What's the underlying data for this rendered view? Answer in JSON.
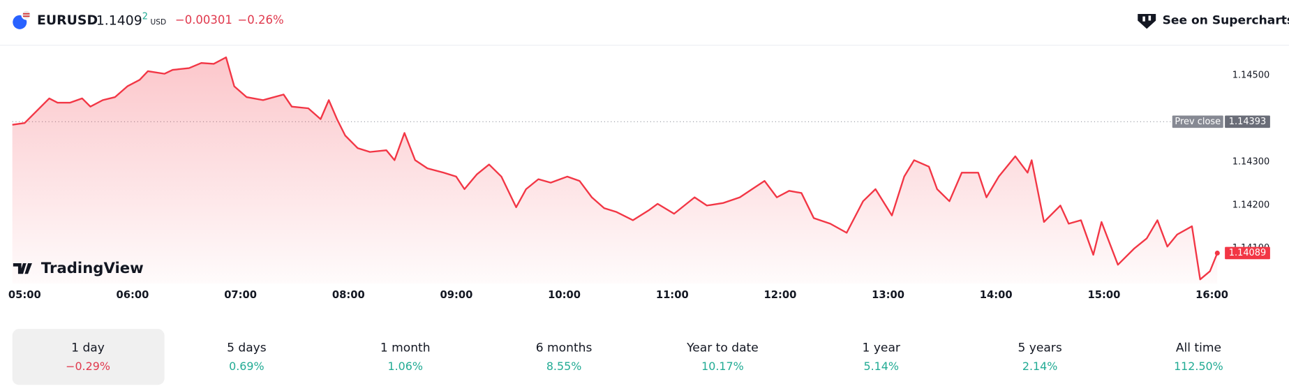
{
  "header": {
    "symbol": "EURUSD",
    "price": "1.1409",
    "price_pipette": "2",
    "currency": "USD",
    "change": "−0.00301",
    "change_percent": "−0.26%",
    "button": "See on Supercharts"
  },
  "brand": "TradingView",
  "chart_data": {
    "type": "line",
    "color": "#f23645",
    "x": [
      4.886,
      5.0,
      5.076,
      5.228,
      5.305,
      5.419,
      5.533,
      5.609,
      5.724,
      5.838,
      5.952,
      6.066,
      6.142,
      6.295,
      6.371,
      6.523,
      6.637,
      6.752,
      6.866,
      6.942,
      7.056,
      7.209,
      7.399,
      7.475,
      7.628,
      7.742,
      7.818,
      7.894,
      7.97,
      8.085,
      8.199,
      8.351,
      8.427,
      8.519,
      8.618,
      8.732,
      8.884,
      8.998,
      9.075,
      9.189,
      9.303,
      9.417,
      9.554,
      9.646,
      9.76,
      9.874,
      10.027,
      10.141,
      10.255,
      10.369,
      10.484,
      10.636,
      10.788,
      10.864,
      11.017,
      11.207,
      11.321,
      11.474,
      11.626,
      11.74,
      11.855,
      11.969,
      12.083,
      12.197,
      12.311,
      12.464,
      12.616,
      12.768,
      12.883,
      13.035,
      13.149,
      13.241,
      13.378,
      13.454,
      13.568,
      13.682,
      13.835,
      13.911,
      14.025,
      14.178,
      14.292,
      14.33,
      14.444,
      14.596,
      14.673,
      14.787,
      14.901,
      14.977,
      15.129,
      15.282,
      15.396,
      15.495,
      15.587,
      15.678,
      15.815,
      15.891,
      15.982,
      16.05
    ],
    "values": [
      1.14386,
      1.1439,
      1.14409,
      1.14447,
      1.14437,
      1.14437,
      1.14447,
      1.14428,
      1.14443,
      1.1445,
      1.14475,
      1.1449,
      1.1451,
      1.14504,
      1.14513,
      1.14517,
      1.14529,
      1.14527,
      1.14542,
      1.14475,
      1.1445,
      1.14443,
      1.14456,
      1.14428,
      1.14424,
      1.14399,
      1.14443,
      1.14399,
      1.14361,
      1.14332,
      1.14323,
      1.14327,
      1.14304,
      1.14367,
      1.14304,
      1.14285,
      1.14275,
      1.14266,
      1.14237,
      1.14271,
      1.14294,
      1.14266,
      1.14195,
      1.14237,
      1.1426,
      1.14252,
      1.14266,
      1.14256,
      1.14218,
      1.14193,
      1.14184,
      1.14165,
      1.14189,
      1.14203,
      1.1418,
      1.14218,
      1.14199,
      1.14205,
      1.14218,
      1.14237,
      1.14256,
      1.14218,
      1.14233,
      1.14228,
      1.1417,
      1.14157,
      1.14136,
      1.14209,
      1.14237,
      1.14176,
      1.14266,
      1.14304,
      1.14289,
      1.14237,
      1.14209,
      1.14275,
      1.14275,
      1.14218,
      1.14266,
      1.14313,
      1.14275,
      1.14304,
      1.14161,
      1.14199,
      1.14157,
      1.14165,
      1.14085,
      1.14161,
      1.14062,
      1.141,
      1.14123,
      1.14165,
      1.14104,
      1.14132,
      1.14151,
      1.14028,
      1.14047,
      1.14089
    ],
    "xlim": [
      4.886,
      16.12
    ],
    "ylim": [
      1.14018,
      1.1457
    ],
    "xticks": [
      {
        "value": 5,
        "label": "05:00"
      },
      {
        "value": 6,
        "label": "06:00"
      },
      {
        "value": 7,
        "label": "07:00"
      },
      {
        "value": 8,
        "label": "08:00"
      },
      {
        "value": 9,
        "label": "09:00"
      },
      {
        "value": 10,
        "label": "10:00"
      },
      {
        "value": 11,
        "label": "11:00"
      },
      {
        "value": 12,
        "label": "12:00"
      },
      {
        "value": 13,
        "label": "13:00"
      },
      {
        "value": 14,
        "label": "14:00"
      },
      {
        "value": 15,
        "label": "15:00"
      },
      {
        "value": 16,
        "label": "16:00"
      }
    ],
    "yticks": [
      {
        "value": 1.141,
        "label": "1.14100"
      },
      {
        "value": 1.142,
        "label": "1.14200"
      },
      {
        "value": 1.143,
        "label": "1.14300"
      },
      {
        "value": 1.145,
        "label": "1.14500"
      }
    ],
    "prev_close": {
      "label": "Prev close",
      "value": 1.14393
    }
  },
  "periods": [
    {
      "label": "1 day",
      "change": "−0.29%"
    },
    {
      "label": "5 days",
      "change": "0.69%"
    },
    {
      "label": "1 month",
      "change": "1.06%"
    },
    {
      "label": "6 months",
      "change": "8.55%"
    },
    {
      "label": "Year to date",
      "change": "10.17%"
    },
    {
      "label": "1 year",
      "change": "5.14%"
    },
    {
      "label": "5 years",
      "change": "2.14%"
    },
    {
      "label": "All time",
      "change": "112.50%"
    }
  ],
  "selected_period": 0
}
